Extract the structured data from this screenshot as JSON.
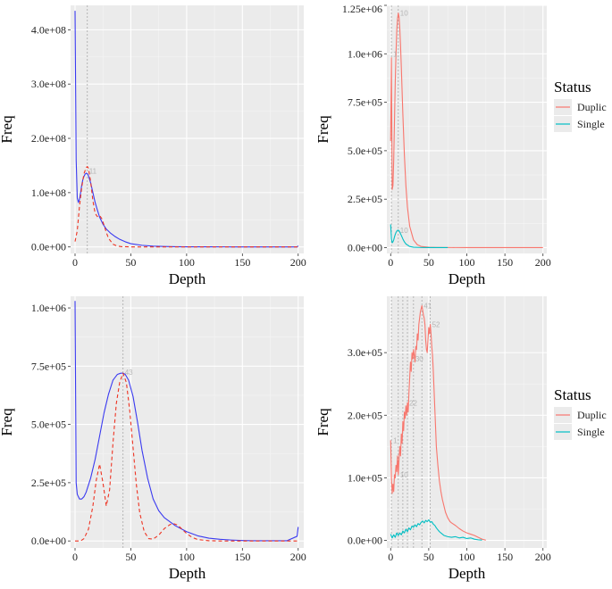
{
  "chart_data": [
    {
      "id": "top-left",
      "type": "line",
      "xlabel": "Depth",
      "ylabel": "Freq",
      "xlim": [
        -4,
        205
      ],
      "ylim": [
        -12000000.0,
        445000000.0
      ],
      "xticks": [
        0,
        50,
        100,
        150,
        200
      ],
      "xtick_labels": [
        "0",
        "50",
        "100",
        "150",
        "200"
      ],
      "yticks": [
        0,
        100000000.0,
        200000000.0,
        300000000.0,
        400000000.0
      ],
      "ytick_labels": [
        "0.0e+00",
        "1.0e+08",
        "2.0e+08",
        "3.0e+08",
        "4.0e+08"
      ],
      "vlines": [
        11
      ],
      "peak_labels": [
        {
          "x": 11,
          "y": 140000000.0,
          "text": "11"
        }
      ],
      "series": [
        {
          "name": "solid",
          "color": "#3a3af0",
          "dash": "solid",
          "x": [
            0,
            1,
            2,
            3,
            4,
            5,
            6,
            7,
            8,
            9,
            10,
            11,
            12,
            14,
            16,
            18,
            20,
            22,
            25,
            28,
            32,
            36,
            40,
            45,
            50,
            60,
            70,
            80,
            90,
            100,
            120,
            140,
            160,
            180,
            199,
            200
          ],
          "y": [
            435000000.0,
            160000000.0,
            90000000.0,
            82000000.0,
            88000000.0,
            100000000.0,
            114000000.0,
            124000000.0,
            130000000.0,
            134000000.0,
            136000000.0,
            135000000.0,
            131000000.0,
            118000000.0,
            100000000.0,
            82000000.0,
            68000000.0,
            55000000.0,
            42000000.0,
            33000000.0,
            25000000.0,
            19000000.0,
            14000000.0,
            9500000.0,
            6000000.0,
            3000000.0,
            1500000.0,
            800000.0,
            500000.0,
            300000.0,
            150000.0,
            100000.0,
            50000.0,
            30000.0,
            10000.0,
            2000000.0
          ]
        },
        {
          "name": "dashed",
          "color": "#ee3322",
          "dash": "dashed",
          "x": [
            0,
            2,
            4,
            6,
            8,
            10,
            11,
            12,
            14,
            16,
            18,
            20,
            22,
            24,
            26,
            28,
            30,
            34,
            38,
            42,
            50,
            60,
            100,
            200
          ],
          "y": [
            10000000.0,
            30000000.0,
            75000000.0,
            110000000.0,
            135000000.0,
            146000000.0,
            148000000.0,
            145000000.0,
            120000000.0,
            85000000.0,
            62000000.0,
            56000000.0,
            58000000.0,
            52000000.0,
            40000000.0,
            27000000.0,
            16000000.0,
            5000000.0,
            1500000.0,
            500000.0,
            100000.0,
            0,
            0,
            0
          ]
        }
      ]
    },
    {
      "id": "top-right",
      "type": "line",
      "xlabel": "Depth",
      "ylabel": "Freq",
      "xlim": [
        -5,
        205
      ],
      "ylim": [
        -30000.0,
        1250000.0
      ],
      "xticks": [
        0,
        50,
        100,
        150,
        200
      ],
      "xtick_labels": [
        "0",
        "50",
        "100",
        "150",
        "200"
      ],
      "yticks": [
        0,
        250000.0,
        500000.0,
        750000.0,
        1000000.0,
        1250000.0
      ],
      "ytick_labels": [
        "0.0e+00",
        "2.5e+05",
        "5.0e+05",
        "7.5e+05",
        "1.0e+06",
        "1.25e+06"
      ],
      "vlines": [
        1,
        10
      ],
      "peak_labels": [
        {
          "x": 10,
          "y": 1210000.0,
          "text": "10"
        },
        {
          "x": 1,
          "y": 1000000.0,
          "text": "1"
        },
        {
          "x": 10,
          "y": 90000.0,
          "text": "10"
        }
      ],
      "legend": {
        "title": "Status",
        "entries": [
          "Duplic",
          "Single"
        ],
        "colors": [
          "#f8766d",
          "#00bfc4"
        ]
      },
      "series": [
        {
          "name": "Duplic",
          "color": "#f8766d",
          "dash": "solid",
          "x": [
            0,
            1,
            2,
            3,
            4,
            5,
            6,
            7,
            8,
            9,
            10,
            11,
            12,
            13,
            14,
            15,
            16,
            18,
            20,
            22,
            25,
            30,
            35,
            40,
            50,
            60,
            80,
            100,
            150,
            200
          ],
          "y": [
            550000.0,
            980000.0,
            300000.0,
            320000.0,
            450000.0,
            650000.0,
            850000.0,
            1000000.0,
            1120000.0,
            1180000.0,
            1210000.0,
            1190000.0,
            1130000.0,
            1040000.0,
            930000.0,
            810000.0,
            690000.0,
            480000.0,
            320000.0,
            210000.0,
            110000.0,
            40000.0,
            15000.0,
            6000.0,
            2000.0,
            1000.0,
            500,
            300,
            100,
            0
          ]
        },
        {
          "name": "Single",
          "color": "#00bfc4",
          "dash": "solid",
          "x": [
            0,
            1,
            2,
            3,
            4,
            5,
            6,
            7,
            8,
            9,
            10,
            11,
            12,
            14,
            16,
            18,
            20,
            25,
            30,
            40,
            50,
            60,
            70,
            75
          ],
          "y": [
            120000.0,
            45000.0,
            25000.0,
            30000.0,
            40000.0,
            55000.0,
            68000.0,
            78000.0,
            85000.0,
            89000.0,
            90000.0,
            87000.0,
            80000.0,
            63000.0,
            45000.0,
            30000.0,
            19000.0,
            6000.0,
            2000.0,
            500,
            200,
            100,
            50,
            0
          ]
        }
      ]
    },
    {
      "id": "bottom-left",
      "type": "line",
      "xlabel": "Depth",
      "ylabel": "Freq",
      "xlim": [
        -4,
        205
      ],
      "ylim": [
        -30000.0,
        1050000.0
      ],
      "xticks": [
        0,
        50,
        100,
        150,
        200
      ],
      "xtick_labels": [
        "0",
        "50",
        "100",
        "150",
        "200"
      ],
      "yticks": [
        0,
        250000.0,
        500000.0,
        750000.0,
        1000000.0
      ],
      "ytick_labels": [
        "0.0e+00",
        "2.5e+05",
        "5.0e+05",
        "7.5e+05",
        "1.0e+06"
      ],
      "vlines": [
        43
      ],
      "peak_labels": [
        {
          "x": 43,
          "y": 725000.0,
          "text": "43"
        }
      ],
      "series": [
        {
          "name": "solid",
          "color": "#3a3af0",
          "dash": "solid",
          "x": [
            0,
            1,
            2,
            4,
            6,
            8,
            10,
            14,
            18,
            22,
            26,
            30,
            34,
            38,
            41,
            43,
            45,
            48,
            52,
            56,
            60,
            65,
            70,
            75,
            80,
            90,
            100,
            110,
            120,
            130,
            140,
            150,
            160,
            170,
            180,
            190,
            199,
            200
          ],
          "y": [
            1030000.0,
            250000.0,
            200000.0,
            180000.0,
            180000.0,
            190000.0,
            210000.0,
            270000.0,
            350000.0,
            450000.0,
            550000.0,
            630000.0,
            690000.0,
            715000.0,
            720000.0,
            720000.0,
            715000.0,
            690000.0,
            620000.0,
            510000.0,
            390000.0,
            270000.0,
            180000.0,
            130000.0,
            100000.0,
            65000.0,
            40000.0,
            22000.0,
            12000.0,
            7000.0,
            4000.0,
            2000.0,
            1000.0,
            1000.0,
            1000.0,
            1000.0,
            20000.0,
            60000.0
          ]
        },
        {
          "name": "dashed",
          "color": "#ee3322",
          "dash": "dashed",
          "x": [
            0,
            5,
            8,
            12,
            16,
            19,
            22,
            25,
            28,
            31,
            34,
            37,
            40,
            43,
            46,
            49,
            52,
            55,
            58,
            62,
            66,
            70,
            75,
            80,
            85,
            88,
            92,
            96,
            100,
            105,
            110,
            120,
            130,
            140,
            150,
            200
          ],
          "y": [
            0,
            0,
            10000.0,
            50000.0,
            150000.0,
            260000.0,
            330000.0,
            250000.0,
            150000.0,
            220000.0,
            420000.0,
            590000.0,
            680000.0,
            720000.0,
            680000.0,
            560000.0,
            400000.0,
            240000.0,
            120000.0,
            40000.0,
            10000.0,
            8000.0,
            25000.0,
            53000.0,
            70000.0,
            75000.0,
            68000.0,
            50000.0,
            32000.0,
            15000.0,
            6000.0,
            1000.0,
            0,
            0,
            0,
            0
          ]
        }
      ]
    },
    {
      "id": "bottom-right",
      "type": "line",
      "xlabel": "Depth",
      "ylabel": "Freq",
      "xlim": [
        -5,
        205
      ],
      "ylim": [
        -12000.0,
        390000.0
      ],
      "xticks": [
        0,
        50,
        100,
        150,
        200
      ],
      "xtick_labels": [
        "0",
        "50",
        "100",
        "150",
        "200"
      ],
      "yticks": [
        0,
        100000.0,
        200000.0,
        300000.0
      ],
      "ytick_labels": [
        "0.0e+00",
        "1.0e+05",
        "2.0e+05",
        "3.0e+05"
      ],
      "vlines": [
        1,
        10,
        16,
        22,
        30,
        41,
        52
      ],
      "peak_labels": [
        {
          "x": 41,
          "y": 375000.0,
          "text": "41"
        },
        {
          "x": 52,
          "y": 345000.0,
          "text": "52"
        },
        {
          "x": 30,
          "y": 290000.0,
          "text": "30"
        },
        {
          "x": 22,
          "y": 220000.0,
          "text": "22"
        },
        {
          "x": 1,
          "y": 160000.0,
          "text": "1"
        },
        {
          "x": 10,
          "y": 105000.0,
          "text": "10"
        }
      ],
      "legend": {
        "title": "Status",
        "entries": [
          "Duplic",
          "Single"
        ],
        "colors": [
          "#f8766d",
          "#00bfc4"
        ]
      },
      "series": [
        {
          "name": "Duplic",
          "color": "#f8766d",
          "dash": "solid",
          "x": [
            0,
            1,
            2,
            3,
            4,
            5,
            6,
            7,
            8,
            9,
            10,
            11,
            12,
            13,
            14,
            15,
            16,
            17,
            18,
            19,
            20,
            21,
            22,
            23,
            24,
            25,
            26,
            27,
            28,
            29,
            30,
            31,
            32,
            33,
            34,
            35,
            36,
            37,
            38,
            39,
            40,
            41,
            42,
            43,
            44,
            45,
            46,
            47,
            48,
            49,
            50,
            51,
            52,
            53,
            54,
            55,
            56,
            57,
            58,
            59,
            60,
            62,
            64,
            66,
            68,
            70,
            72,
            75,
            78,
            80,
            85,
            90,
            95,
            100,
            105,
            110,
            115,
            120,
            125
          ],
          "y": [
            160000.0,
            100000.0,
            75000.0,
            90000.0,
            78000.0,
            105000.0,
            100000.0,
            120000.0,
            110000.0,
            135000.0,
            105000.0,
            130000.0,
            150000.0,
            135000.0,
            170000.0,
            155000.0,
            190000.0,
            175000.0,
            205000.0,
            195000.0,
            215000.0,
            200000.0,
            220000.0,
            205000.0,
            235000.0,
            260000.0,
            285000.0,
            270000.0,
            300000.0,
            290000.0,
            305000.0,
            295000.0,
            285000.0,
            310000.0,
            305000.0,
            330000.0,
            320000.0,
            345000.0,
            355000.0,
            365000.0,
            370000.0,
            375000.0,
            368000.0,
            360000.0,
            355000.0,
            345000.0,
            320000.0,
            305000.0,
            300000.0,
            320000.0,
            340000.0,
            330000.0,
            345000.0,
            330000.0,
            310000.0,
            295000.0,
            270000.0,
            240000.0,
            210000.0,
            180000.0,
            150000.0,
            120000.0,
            95000.0,
            78000.0,
            65000.0,
            55000.0,
            45000.0,
            36000.0,
            30000.0,
            28000.0,
            24000.0,
            19000.0,
            15000.0,
            12000.0,
            10000.0,
            8000.0,
            5000.0,
            2000.0,
            500
          ]
        },
        {
          "name": "Single",
          "color": "#00bfc4",
          "dash": "solid",
          "x": [
            0,
            2,
            4,
            6,
            8,
            10,
            12,
            14,
            16,
            18,
            20,
            22,
            24,
            26,
            28,
            30,
            32,
            34,
            36,
            38,
            40,
            42,
            44,
            46,
            48,
            50,
            52,
            54,
            56,
            58,
            60,
            62,
            64,
            66,
            68,
            70,
            75,
            80,
            85,
            90,
            95,
            100,
            105,
            110,
            115,
            120
          ],
          "y": [
            10000.0,
            4000.0,
            9000.0,
            5000.0,
            12000.0,
            8000.0,
            12000.0,
            9000.0,
            15000.0,
            12000.0,
            18000.0,
            14000.0,
            20000.0,
            17000.0,
            23000.0,
            21000.0,
            25000.0,
            22000.0,
            27000.0,
            25000.0,
            29000.0,
            31000.0,
            28000.0,
            32000.0,
            30000.0,
            33000.0,
            29000.0,
            30000.0,
            26000.0,
            24000.0,
            20000.0,
            17000.0,
            14000.0,
            12000.0,
            10000.0,
            8000.0,
            6000.0,
            5000.0,
            6000.0,
            4000.0,
            5000.0,
            3000.0,
            4000.0,
            2000.0,
            1000.0,
            500
          ]
        }
      ]
    }
  ]
}
